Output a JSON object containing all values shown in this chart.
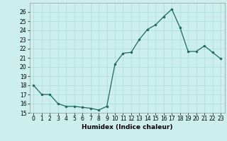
{
  "x": [
    0,
    1,
    2,
    3,
    4,
    5,
    6,
    7,
    8,
    9,
    10,
    11,
    12,
    13,
    14,
    15,
    16,
    17,
    18,
    19,
    20,
    21,
    22,
    23
  ],
  "y": [
    18,
    17,
    17,
    16,
    15.7,
    15.7,
    15.6,
    15.5,
    15.3,
    15.7,
    20.3,
    21.5,
    21.6,
    23.0,
    24.1,
    24.6,
    25.5,
    26.3,
    24.3,
    21.7,
    21.7,
    22.3,
    21.6,
    20.9
  ],
  "line_color": "#1a6b5a",
  "marker": "o",
  "markersize": 2.0,
  "linewidth": 0.9,
  "bg_color": "#cceeed",
  "grid_color": "#aadddb",
  "xlabel": "Humidex (Indice chaleur)",
  "ylim": [
    15,
    27
  ],
  "xlim": [
    -0.5,
    23.5
  ],
  "yticks": [
    15,
    16,
    17,
    18,
    19,
    20,
    21,
    22,
    23,
    24,
    25,
    26
  ],
  "xticks": [
    0,
    1,
    2,
    3,
    4,
    5,
    6,
    7,
    8,
    9,
    10,
    11,
    12,
    13,
    14,
    15,
    16,
    17,
    18,
    19,
    20,
    21,
    22,
    23
  ],
  "xlabel_fontsize": 6.5,
  "tick_fontsize": 5.5
}
